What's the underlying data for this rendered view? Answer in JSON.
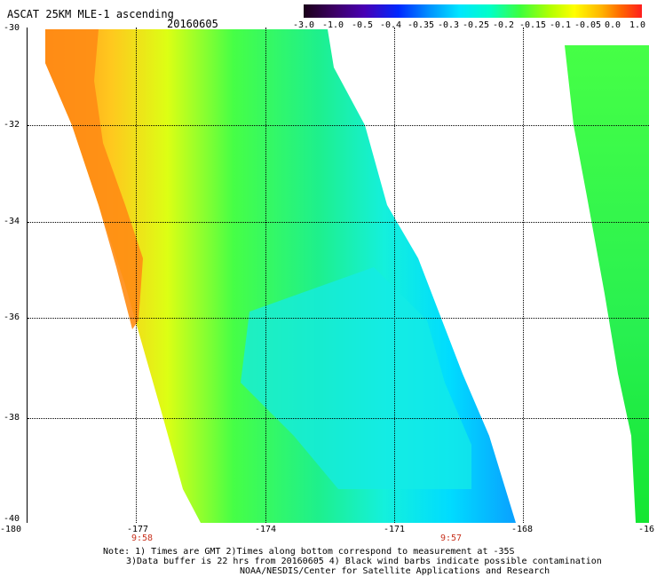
{
  "header": {
    "title": "ASCAT 25KM MLE-1 ascending",
    "date": "20160605"
  },
  "colorbar": {
    "labels": [
      "-3.0",
      "-1.0",
      "-0.5",
      "-0.4",
      "-0.35",
      "-0.3",
      "-0.25",
      "-0.2",
      "-0.15",
      "-0.1",
      "-0.05",
      "0.0",
      "1.0"
    ],
    "colors": [
      "#1a0018",
      "#3c0064",
      "#4800b4",
      "#0028ff",
      "#0090ff",
      "#00e6ff",
      "#00ffc8",
      "#3cff3c",
      "#b4ff00",
      "#ffff00",
      "#ffb400",
      "#ff6400",
      "#ff1e1e"
    ]
  },
  "map": {
    "lat_labels": [
      "-30",
      "-32",
      "-34",
      "-36",
      "-38",
      "-40"
    ],
    "lon_labels": [
      "-180",
      "-177",
      "-174",
      "-171",
      "-168",
      "-16"
    ],
    "time_labels": [
      "9:58",
      "9:57"
    ],
    "time_color": "#c8321e"
  },
  "notes": {
    "line1": "Note: 1) Times are GMT 2)Times along bottom correspond to measurement at -35S",
    "line2": "3)Data buffer is 22 hrs from 20160605 4) Black wind barbs indicate possible contamination",
    "line3": "NOAA/NESDIS/Center for Satellite Applications and Research"
  }
}
